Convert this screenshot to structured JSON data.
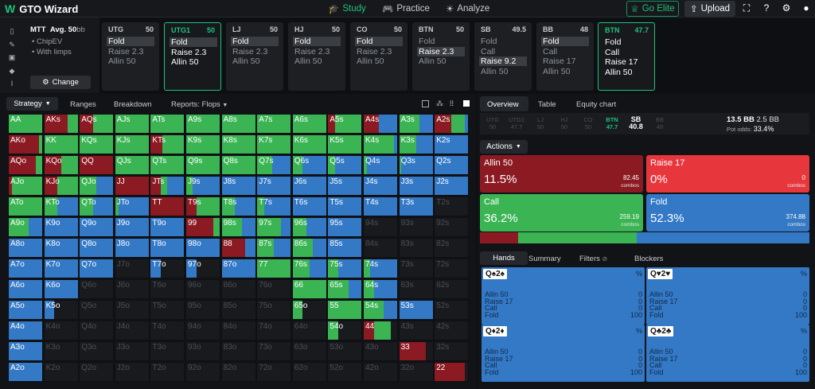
{
  "app": {
    "name": "GTO Wizard"
  },
  "nav": {
    "study": "Study",
    "practice": "Practice",
    "analyze": "Analyze",
    "elite": "Go Elite",
    "upload": "Upload"
  },
  "context": {
    "format": "MTT",
    "stack": "Avg. 50",
    "stack_unit": "bb",
    "opt1": "ChipEV",
    "opt2": "With limps",
    "change": "Change"
  },
  "positions": [
    {
      "name": "UTG",
      "stack": "50",
      "actions": [
        "Fold",
        "Raise 2.3",
        "Allin 50"
      ],
      "selected_action": 0
    },
    {
      "name": "UTG1",
      "stack": "50",
      "actions": [
        "Fold",
        "Raise 2.3",
        "Allin 50"
      ],
      "selected_action": -1,
      "current": false,
      "taken": 1
    },
    {
      "name": "LJ",
      "stack": "50",
      "actions": [
        "Fold",
        "Raise 2.3",
        "Allin 50"
      ],
      "selected_action": 0
    },
    {
      "name": "HJ",
      "stack": "50",
      "actions": [
        "Fold",
        "Raise 2.3",
        "Allin 50"
      ],
      "selected_action": 0
    },
    {
      "name": "CO",
      "stack": "50",
      "actions": [
        "Fold",
        "Raise 2.3",
        "Allin 50"
      ],
      "selected_action": 0
    },
    {
      "name": "BTN",
      "stack": "50",
      "actions": [
        "Fold",
        "Raise 2.3",
        "Allin 50"
      ],
      "selected_action": 1
    },
    {
      "name": "SB",
      "stack": "49.5",
      "actions": [
        "Fold",
        "Call",
        "Raise 9.2",
        "Allin 50"
      ],
      "selected_action": 2
    },
    {
      "name": "BB",
      "stack": "48",
      "actions": [
        "Fold",
        "Call",
        "Raise 17",
        "Allin 50"
      ],
      "selected_action": 0
    },
    {
      "name": "BTN",
      "stack": "47.7",
      "actions": [
        "Fold",
        "Call",
        "Raise 17",
        "Allin 50"
      ],
      "selected_action": -1
    }
  ],
  "grid_tabs": {
    "strategy": "Strategy",
    "ranges": "Ranges",
    "breakdown": "Breakdown",
    "reports": "Reports: Flops"
  },
  "ranks": [
    "A",
    "K",
    "Q",
    "J",
    "T",
    "9",
    "8",
    "7",
    "6",
    "5",
    "4",
    "3",
    "2"
  ],
  "right_tabs": {
    "overview": "Overview",
    "table": "Table",
    "equity": "Equity chart"
  },
  "seq": [
    {
      "p": "UTG",
      "v": "50"
    },
    {
      "p": "UTG1",
      "v": "47.7"
    },
    {
      "p": "LJ",
      "v": "50"
    },
    {
      "p": "HJ",
      "v": "50"
    },
    {
      "p": "CO",
      "v": "50"
    },
    {
      "p": "BTN",
      "v": "47.7"
    },
    {
      "p": "SB",
      "v": "40.8"
    },
    {
      "p": "BB",
      "v": "49"
    }
  ],
  "pot": {
    "value": "13.5 BB",
    "call": "2.5 BB",
    "odds_label": "Pot odds:",
    "odds": "33.4%"
  },
  "actions_label": "Actions",
  "actions": [
    {
      "name": "Allin 50",
      "pct": "11.5%",
      "combos": "82.45",
      "color": "#8b1a22",
      "frac": 0.115
    },
    {
      "name": "Raise 17",
      "pct": "0%",
      "combos": "0",
      "color": "#e8363d",
      "frac": 0
    },
    {
      "name": "Call",
      "pct": "36.2%",
      "combos": "259.19",
      "color": "#3bb554",
      "frac": 0.362
    },
    {
      "name": "Fold",
      "pct": "52.3%",
      "combos": "374.88",
      "color": "#3479c6",
      "frac": 0.523
    }
  ],
  "combos_word": "combos",
  "hand_tabs": {
    "hands": "Hands",
    "summary": "Summary",
    "filters": "Filters",
    "blockers": "Blockers"
  },
  "hands": [
    {
      "card": "Q♠2♠",
      "red": false,
      "pct": "%",
      "rows": [
        [
          "Allin 50",
          "0"
        ],
        [
          "Raise 17",
          "0"
        ],
        [
          "Call",
          "0"
        ],
        [
          "Fold",
          "100"
        ]
      ]
    },
    {
      "card": "Q♥2♥",
      "red": true,
      "pct": "%",
      "rows": [
        [
          "Allin 50",
          "0"
        ],
        [
          "Raise 17",
          "0"
        ],
        [
          "Call",
          "0"
        ],
        [
          "Fold",
          "100"
        ]
      ]
    },
    {
      "card": "Q♦2♦",
      "red": false,
      "pct": "%",
      "rows": [
        [
          "Allin 50",
          "0"
        ],
        [
          "Raise 17",
          "0"
        ],
        [
          "Call",
          "0"
        ],
        [
          "Fold",
          "100"
        ]
      ]
    },
    {
      "card": "Q♣2♣",
      "red": false,
      "pct": "%",
      "rows": [
        [
          "Allin 50",
          "0"
        ],
        [
          "Raise 17",
          "0"
        ],
        [
          "Call",
          "0"
        ],
        [
          "Fold",
          "100"
        ]
      ]
    }
  ],
  "colors": {
    "allin": "#8b1a22",
    "raise": "#e8363d",
    "call": "#3bb554",
    "fold": "#3479c6",
    "accent": "#1fc37a"
  },
  "grid": [
    [
      [
        [
          0,
          0,
          1,
          0
        ]
      ],
      [
        [
          0.7,
          0,
          0.3,
          0
        ]
      ],
      [
        [
          0.4,
          0,
          0.6,
          0
        ]
      ],
      [
        [
          0,
          0,
          1,
          0
        ]
      ],
      [
        [
          0,
          0,
          1,
          0
        ]
      ],
      [
        [
          0,
          0,
          1,
          0
        ]
      ],
      [
        [
          0,
          0,
          1,
          0
        ]
      ],
      [
        [
          0,
          0,
          1,
          0
        ]
      ],
      [
        [
          0,
          0,
          1,
          0
        ]
      ],
      [
        [
          0.2,
          0,
          0.8,
          0
        ]
      ],
      [
        [
          0.45,
          0,
          0,
          0.55
        ]
      ],
      [
        [
          0,
          0,
          0.6,
          0.4
        ]
      ],
      [
        [
          0.5,
          0,
          0.4,
          0.1
        ]
      ]
    ],
    [
      [
        0.9,
        0,
        0.1,
        0
      ],
      [
        0,
        0,
        1,
        0
      ],
      [
        0,
        0,
        1,
        0
      ],
      [
        0,
        0,
        1,
        0
      ],
      [
        0.35,
        0,
        0.65,
        0
      ],
      [
        0,
        0,
        1,
        0
      ],
      [
        0,
        0,
        1,
        0
      ],
      [
        0,
        0,
        1,
        0
      ],
      [
        0,
        0,
        1,
        0
      ],
      [
        0,
        0,
        1,
        0
      ],
      [
        0,
        0,
        0.9,
        0.1
      ],
      [
        0,
        0,
        0.5,
        0.5
      ],
      [
        0,
        0,
        0,
        1
      ]
    ],
    [
      [
        0.8,
        0,
        0.2,
        0
      ],
      [
        0.5,
        0,
        0.5,
        0
      ],
      [
        1,
        0,
        0,
        0
      ],
      [
        0,
        0,
        1,
        0
      ],
      [
        0,
        0,
        1,
        0
      ],
      [
        0,
        0,
        1,
        0
      ],
      [
        0,
        0,
        1,
        0
      ],
      [
        0,
        0,
        0.45,
        0.55
      ],
      [
        0,
        0,
        0.3,
        0.7
      ],
      [
        0,
        0,
        0.2,
        0.8
      ],
      [
        0,
        0,
        0.1,
        0.9
      ],
      [
        0,
        0,
        0.05,
        0.95
      ],
      [
        0,
        0,
        0,
        1
      ]
    ],
    [
      [
        0.1,
        0,
        0.9,
        0
      ],
      [
        0.4,
        0,
        0.6,
        0
      ],
      [
        0,
        0,
        0.5,
        0.5
      ],
      [
        1,
        0,
        0,
        0
      ],
      [
        0.3,
        0,
        0.2,
        0.5
      ],
      [
        0,
        0,
        0.2,
        0.8
      ],
      [
        0,
        0,
        0,
        1
      ],
      [
        0,
        0,
        0,
        1
      ],
      [
        0,
        0,
        0,
        1
      ],
      [
        0,
        0,
        0,
        1
      ],
      [
        0,
        0,
        0,
        1
      ],
      [
        0,
        0,
        0,
        1
      ],
      [
        0,
        0,
        0,
        1
      ]
    ],
    [
      [
        0,
        0,
        1,
        0
      ],
      [
        0,
        0,
        0.4,
        0.6
      ],
      [
        0,
        0,
        0.4,
        0.6
      ],
      [
        0,
        0,
        0.1,
        0.9
      ],
      [
        1,
        0,
        0,
        0
      ],
      [
        0.3,
        0,
        0.7,
        0
      ],
      [
        0,
        0,
        0.4,
        0.6
      ],
      [
        0,
        0,
        0.2,
        0.8
      ],
      [
        0,
        0,
        0,
        1
      ],
      [
        0,
        0,
        0,
        1
      ],
      [
        0,
        0,
        0,
        1
      ],
      [
        0,
        0,
        0,
        1
      ],
      [
        0,
        0,
        0,
        0
      ]
    ],
    [
      [
        0,
        0,
        0.6,
        0.4
      ],
      [
        0,
        0,
        0,
        1
      ],
      [
        0,
        0,
        0,
        1
      ],
      [
        0,
        0,
        0,
        1
      ],
      [
        0,
        0,
        0,
        1
      ],
      [
        0.8,
        0,
        0.2,
        0
      ],
      [
        0,
        0,
        0.6,
        0.4
      ],
      [
        0,
        0,
        0.7,
        0.3
      ],
      [
        0,
        0,
        0.4,
        0.6
      ],
      [
        0,
        0,
        0,
        1
      ],
      [
        0,
        0,
        0,
        0
      ],
      [
        0,
        0,
        0,
        0
      ],
      [
        0,
        0,
        0,
        0
      ]
    ],
    [
      [
        0,
        0,
        0,
        1
      ],
      [
        0,
        0,
        0,
        1
      ],
      [
        0,
        0,
        0,
        1
      ],
      [
        0,
        0,
        0,
        1
      ],
      [
        0,
        0,
        0,
        1
      ],
      [
        0,
        0,
        0,
        1
      ],
      [
        0.7,
        0,
        0,
        0.3
      ],
      [
        0,
        0,
        0.5,
        0.5
      ],
      [
        0,
        0,
        0.6,
        0.4
      ],
      [
        0,
        0,
        0,
        1
      ],
      [
        0,
        0,
        0,
        0
      ],
      [
        0,
        0,
        0,
        0
      ],
      [
        0,
        0,
        0,
        0
      ]
    ],
    [
      [
        0,
        0,
        0,
        1
      ],
      [
        0,
        0,
        0,
        1
      ],
      [
        0,
        0,
        0,
        1
      ],
      [
        0,
        0,
        0,
        0
      ],
      [
        0,
        0,
        0,
        0.3
      ],
      [
        0,
        0,
        0,
        0.3
      ],
      [
        0,
        0,
        0,
        1
      ],
      [
        0,
        0,
        1,
        0
      ],
      [
        0,
        0,
        0.5,
        0.5
      ],
      [
        0,
        0,
        0.3,
        0.7
      ],
      [
        0,
        0,
        0.2,
        0.8
      ],
      [
        0,
        0,
        0,
        0
      ],
      [
        0,
        0,
        0,
        0
      ]
    ],
    [
      [
        0,
        0,
        0,
        1
      ],
      [
        0,
        0,
        0,
        1
      ],
      [
        0,
        0,
        0,
        0
      ],
      [
        0,
        0,
        0,
        0
      ],
      [
        0,
        0,
        0,
        0
      ],
      [
        0,
        0,
        0,
        0
      ],
      [
        0,
        0,
        0,
        0
      ],
      [
        0,
        0,
        0,
        0
      ],
      [
        0,
        0,
        1,
        0
      ],
      [
        0,
        0,
        0.6,
        0.4
      ],
      [
        0,
        0,
        0.3,
        0.7
      ],
      [
        0,
        0,
        0,
        0
      ],
      [
        0,
        0,
        0,
        0
      ]
    ],
    [
      [
        0,
        0,
        0,
        1
      ],
      [
        0,
        0,
        0,
        0.3
      ],
      [
        0,
        0,
        0,
        0
      ],
      [
        0,
        0,
        0,
        0
      ],
      [
        0,
        0,
        0,
        0
      ],
      [
        0,
        0,
        0,
        0
      ],
      [
        0,
        0,
        0,
        0
      ],
      [
        0,
        0,
        0,
        0
      ],
      [
        0,
        0,
        0.3,
        0
      ],
      [
        0,
        0,
        1,
        0
      ],
      [
        0,
        0,
        0.6,
        0.4
      ],
      [
        0,
        0,
        0,
        1
      ],
      [
        0,
        0,
        0,
        0
      ]
    ],
    [
      [
        0,
        0,
        0,
        1
      ],
      [
        0,
        0,
        0,
        0
      ],
      [
        0,
        0,
        0,
        0
      ],
      [
        0,
        0,
        0,
        0
      ],
      [
        0,
        0,
        0,
        0
      ],
      [
        0,
        0,
        0,
        0
      ],
      [
        0,
        0,
        0,
        0
      ],
      [
        0,
        0,
        0,
        0
      ],
      [
        0,
        0,
        0,
        0
      ],
      [
        0,
        0,
        0.3,
        0
      ],
      [
        0.3,
        0,
        0.5,
        0
      ],
      [
        0,
        0,
        0,
        0
      ],
      [
        0,
        0,
        0,
        0
      ]
    ],
    [
      [
        0,
        0,
        0,
        1
      ],
      [
        0,
        0,
        0,
        0
      ],
      [
        0,
        0,
        0,
        0
      ],
      [
        0,
        0,
        0,
        0
      ],
      [
        0,
        0,
        0,
        0
      ],
      [
        0,
        0,
        0,
        0
      ],
      [
        0,
        0,
        0,
        0
      ],
      [
        0,
        0,
        0,
        0
      ],
      [
        0,
        0,
        0,
        0
      ],
      [
        0,
        0,
        0,
        0
      ],
      [
        0,
        0,
        0,
        0
      ],
      [
        0.8,
        0,
        0,
        0
      ],
      [
        0,
        0,
        0,
        0
      ]
    ],
    [
      [
        0,
        0,
        0,
        1
      ],
      [
        0,
        0,
        0,
        0
      ],
      [
        0,
        0,
        0,
        0
      ],
      [
        0,
        0,
        0,
        0
      ],
      [
        0,
        0,
        0,
        0
      ],
      [
        0,
        0,
        0,
        0
      ],
      [
        0,
        0,
        0,
        0
      ],
      [
        0,
        0,
        0,
        0
      ],
      [
        0,
        0,
        0,
        0
      ],
      [
        0,
        0,
        0,
        0
      ],
      [
        0,
        0,
        0,
        0
      ],
      [
        0,
        0,
        0,
        0
      ],
      [
        0.9,
        0,
        0,
        0
      ]
    ]
  ]
}
